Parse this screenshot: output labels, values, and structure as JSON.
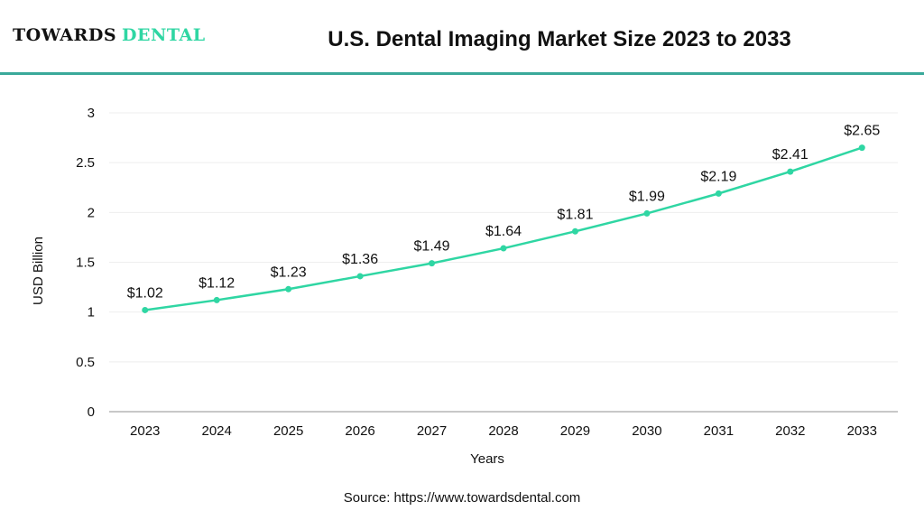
{
  "header": {
    "logo_part1": "TOWARDS",
    "logo_part2": "DENTAL",
    "title": "U.S. Dental Imaging Market Size 2023 to 2033"
  },
  "source": "Source: https://www.towardsdental.com",
  "colors": {
    "line": "#2fd6a3",
    "rule": "#3aa99a"
  },
  "chart_data": {
    "type": "line",
    "title": "U.S. Dental Imaging Market Size 2023 to 2033",
    "xlabel": "Years",
    "ylabel": "USD Billion",
    "ylim": [
      0,
      3
    ],
    "yticks": [
      "0",
      "0.5",
      "1",
      "1.5",
      "2",
      "2.5",
      "3"
    ],
    "grid": true,
    "categories": [
      "2023",
      "2024",
      "2025",
      "2026",
      "2027",
      "2028",
      "2029",
      "2030",
      "2031",
      "2032",
      "2033"
    ],
    "values": [
      1.02,
      1.12,
      1.23,
      1.36,
      1.49,
      1.64,
      1.81,
      1.99,
      2.19,
      2.41,
      2.65
    ],
    "labels": [
      "$1.02",
      "$1.12",
      "$1.23",
      "$1.36",
      "$1.49",
      "$1.64",
      "$1.81",
      "$1.99",
      "$2.19",
      "$2.41",
      "$2.65"
    ]
  }
}
